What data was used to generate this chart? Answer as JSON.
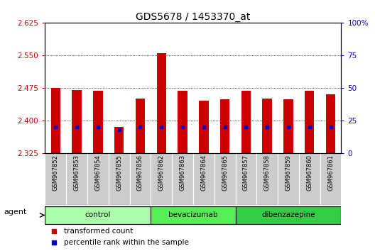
{
  "title": "GDS5678 / 1453370_at",
  "samples": [
    "GSM967852",
    "GSM967853",
    "GSM967854",
    "GSM967855",
    "GSM967856",
    "GSM967862",
    "GSM967863",
    "GSM967864",
    "GSM967865",
    "GSM967857",
    "GSM967858",
    "GSM967859",
    "GSM967860",
    "GSM967861"
  ],
  "transformed_counts": [
    2.475,
    2.47,
    2.468,
    2.385,
    2.45,
    2.555,
    2.468,
    2.445,
    2.448,
    2.468,
    2.45,
    2.448,
    2.468,
    2.46
  ],
  "percentile_ranks": [
    20,
    20,
    20,
    18,
    20,
    20,
    20,
    20,
    20,
    20,
    20,
    20,
    20,
    20
  ],
  "base_value": 2.325,
  "ylim": [
    2.325,
    2.625
  ],
  "y_ticks": [
    2.325,
    2.4,
    2.475,
    2.55,
    2.625
  ],
  "right_ticks": [
    0,
    25,
    50,
    75,
    100
  ],
  "right_tick_labels": [
    "0",
    "25",
    "50",
    "75",
    "100%"
  ],
  "groups": [
    {
      "name": "control",
      "start": 0,
      "end": 5,
      "color": "#aaffaa"
    },
    {
      "name": "bevacizumab",
      "start": 5,
      "end": 9,
      "color": "#55ee55"
    },
    {
      "name": "dibenzazepine",
      "start": 9,
      "end": 14,
      "color": "#33cc44"
    }
  ],
  "bar_color": "#cc0000",
  "dot_color": "#0000cc",
  "bar_width": 0.45,
  "background_color": "#ffffff",
  "plot_bg_color": "#ffffff",
  "xtick_bg_color": "#cccccc",
  "agent_label": "agent",
  "legend_items": [
    {
      "color": "#cc0000",
      "label": "transformed count"
    },
    {
      "color": "#0000cc",
      "label": "percentile rank within the sample"
    }
  ]
}
